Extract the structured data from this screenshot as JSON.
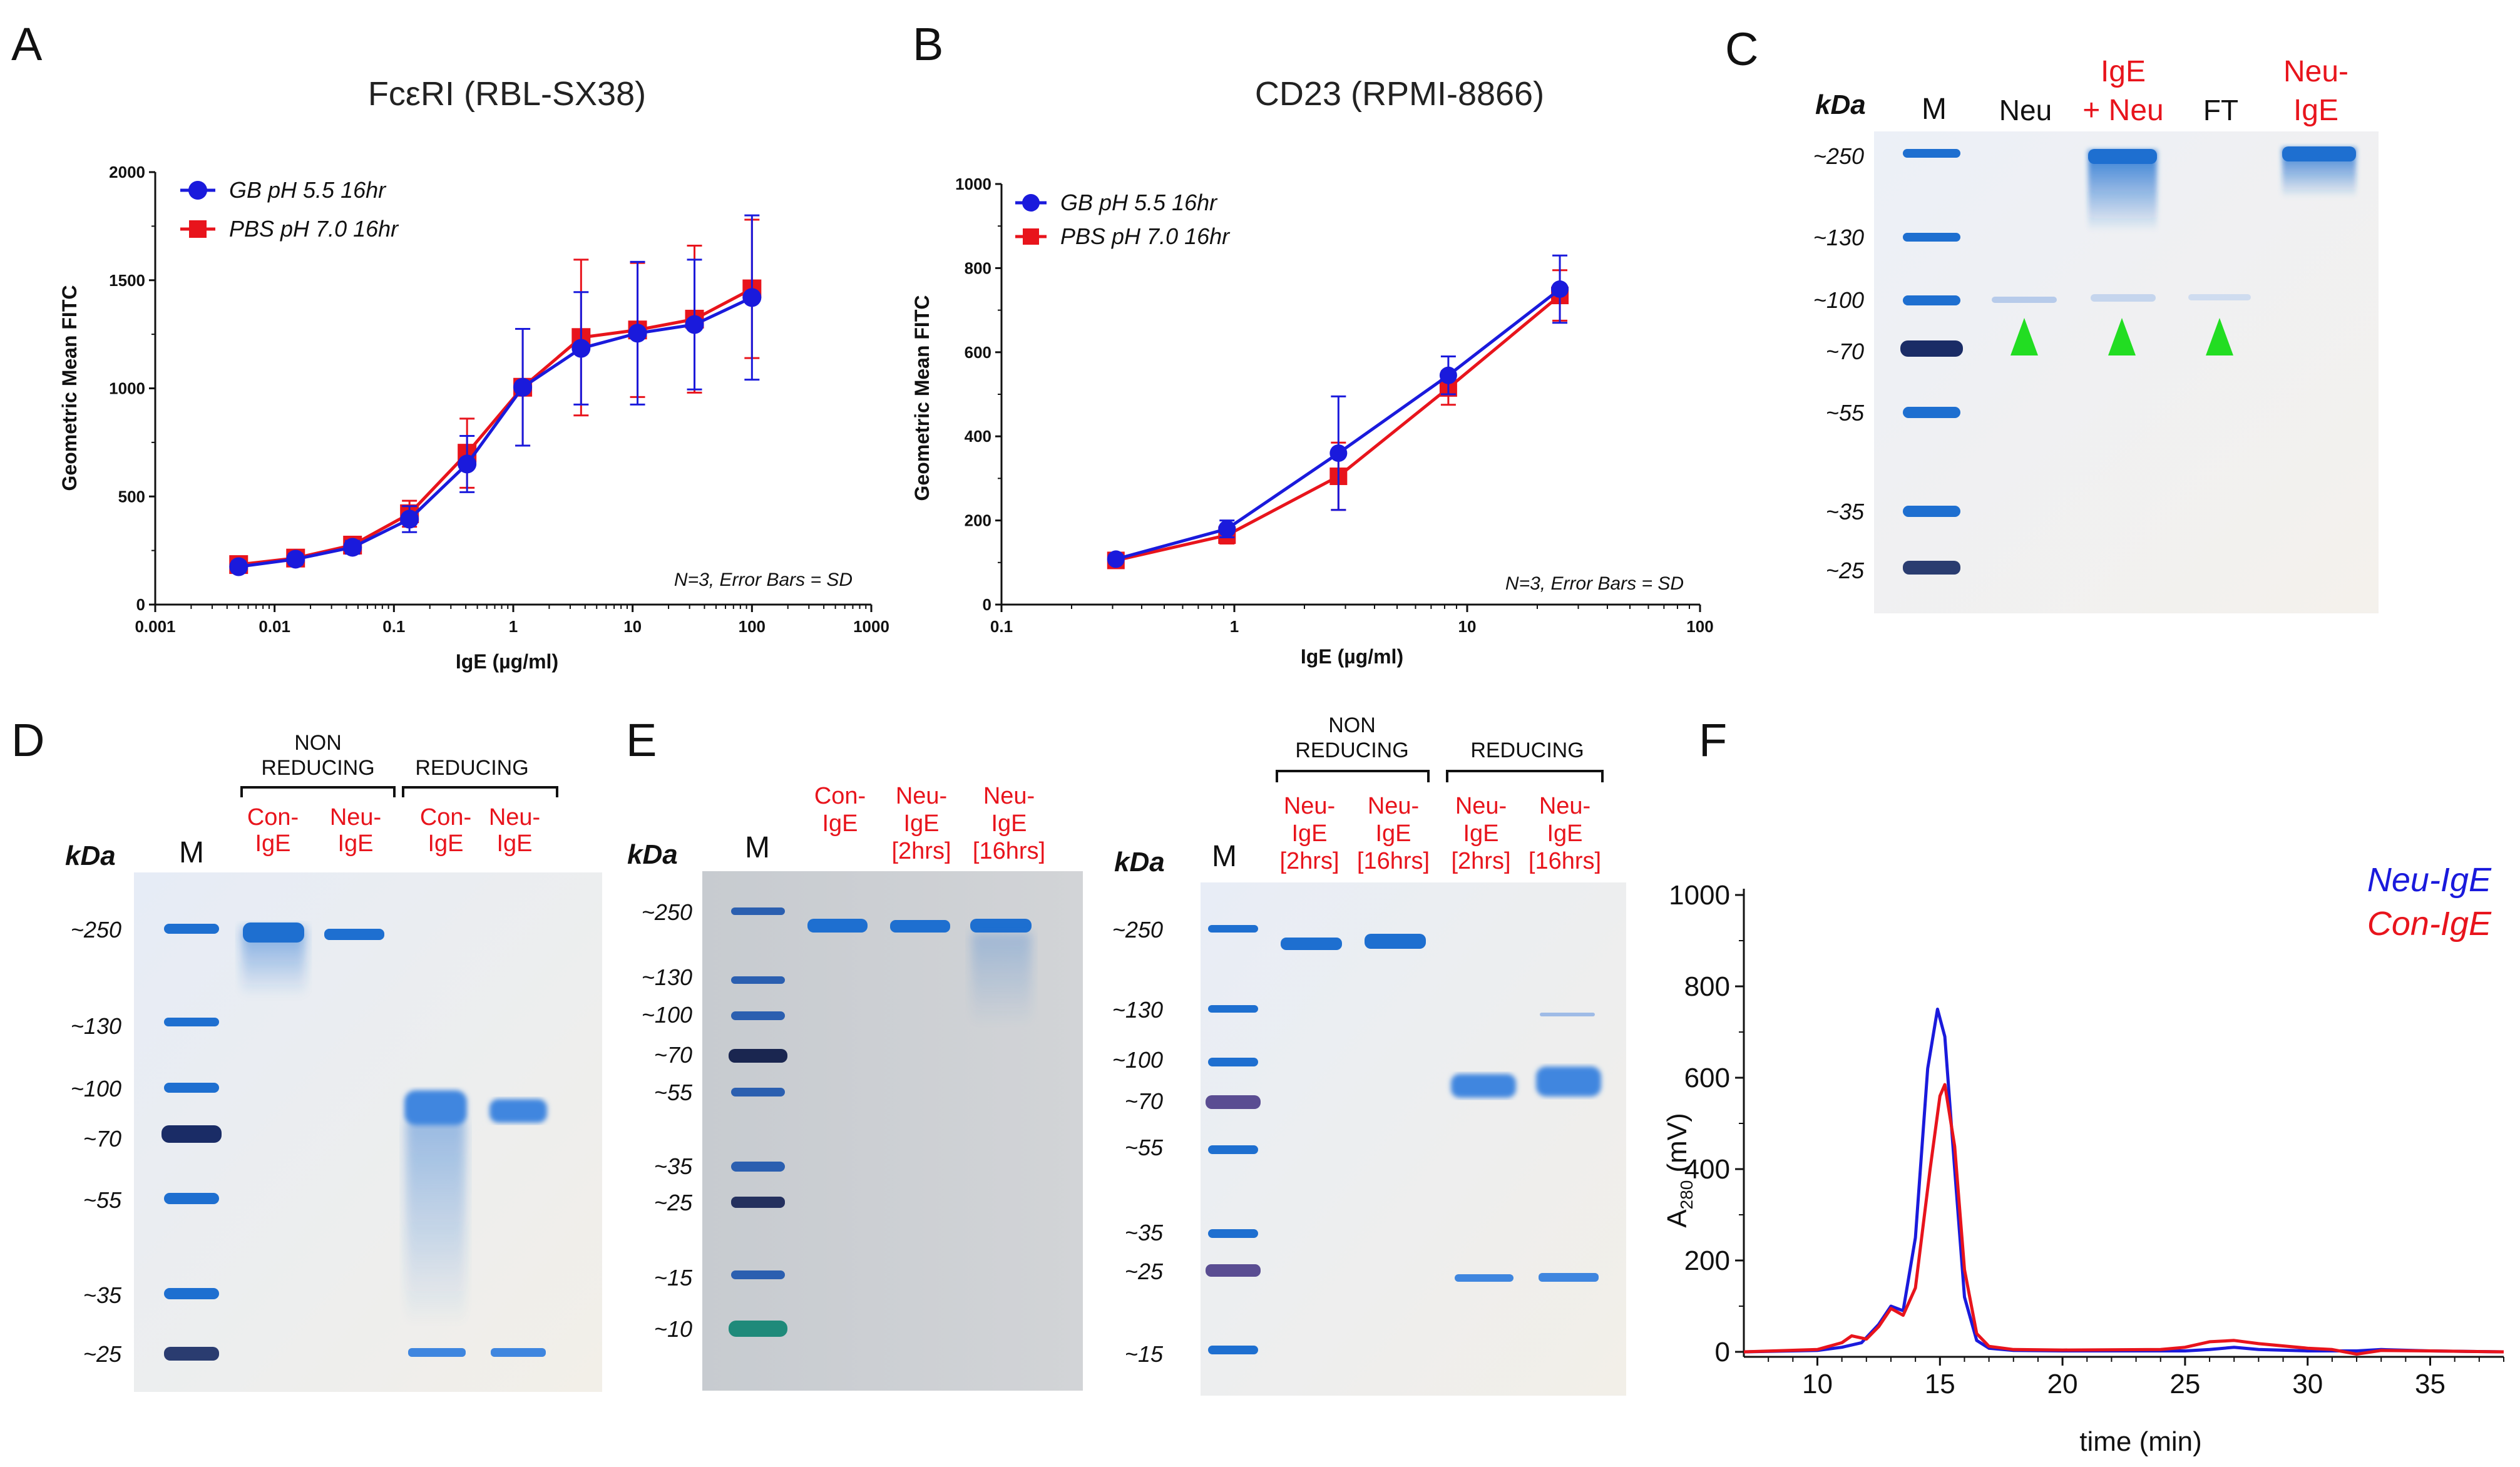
{
  "panels": {
    "A": {
      "letter": "A",
      "title": "FcεRI (RBL-SX38)",
      "xlabel": "IgE (µg/ml)",
      "ylabel": "Geometric Mean FITC",
      "note": "N=3, Error Bars = SD",
      "xticks": [
        "0.001",
        "0.01",
        "0.1",
        "1",
        "10",
        "100",
        "1000"
      ],
      "yticks": [
        "0",
        "500",
        "1000",
        "1500",
        "2000"
      ]
    },
    "B": {
      "letter": "B",
      "title": "CD23 (RPMI-8866)",
      "xlabel": "IgE (µg/ml)",
      "ylabel": "Geometric Mean FITC",
      "note": "N=3, Error Bars = SD",
      "xticks": [
        "0.1",
        "1",
        "10",
        "100"
      ],
      "yticks": [
        "0",
        "200",
        "400",
        "600",
        "800",
        "1000"
      ]
    },
    "C": {
      "letter": "C",
      "kda": "kDa",
      "marker": "M",
      "lanes": {
        "neu": "Neu",
        "ige_neu_1": "IgE",
        "ige_neu_2": "+ Neu",
        "ft": "FT",
        "neu_ige_1": "Neu-",
        "neu_ige_2": "IgE"
      },
      "mw": [
        "~250",
        "~130",
        "~100",
        "~70",
        "~55",
        "~35",
        "~25"
      ]
    },
    "D": {
      "letter": "D",
      "kda": "kDa",
      "marker": "M",
      "cond_non_1": "NON",
      "cond_non_2": "REDUCING",
      "cond_red": "REDUCING",
      "lanes": [
        [
          "Con-",
          "IgE"
        ],
        [
          "Neu-",
          "IgE"
        ],
        [
          "Con-",
          "IgE"
        ],
        [
          "Neu-",
          "IgE"
        ]
      ],
      "mw": [
        "~250",
        "~130",
        "~100",
        "~70",
        "~55",
        "~35",
        "~25"
      ]
    },
    "E": {
      "letter": "E",
      "kda": "kDa",
      "marker": "M",
      "left_lanes": [
        [
          "Con-",
          "IgE",
          ""
        ],
        [
          "Neu-",
          "IgE",
          "[2hrs]"
        ],
        [
          "Neu-",
          "IgE",
          "[16hrs]"
        ]
      ],
      "left_mw": [
        "~250",
        "~130",
        "~100",
        "~70",
        "~55",
        "~35",
        "~25",
        "~15",
        "~10"
      ],
      "cond_non_1": "NON",
      "cond_non_2": "REDUCING",
      "cond_red": "REDUCING",
      "right_lanes": [
        [
          "Neu-",
          "IgE",
          "[2hrs]"
        ],
        [
          "Neu-",
          "IgE",
          "[16hrs]"
        ],
        [
          "Neu-",
          "IgE",
          "[2hrs]"
        ],
        [
          "Neu-",
          "IgE",
          "[16hrs]"
        ]
      ],
      "right_mw": [
        "~250",
        "~130",
        "~100",
        "~70",
        "~55",
        "~35",
        "~25",
        "~15"
      ]
    },
    "F": {
      "letter": "F",
      "xlabel": "time (min)",
      "ylabel_main": "A",
      "ylabel_sub": "280",
      "ylabel_unit": " (mV)",
      "legend": [
        {
          "name": "Neu-IgE",
          "color": "#1a1adc"
        },
        {
          "name": "Con-IgE",
          "color": "#e8141c"
        }
      ],
      "xticks": [
        "10",
        "15",
        "20",
        "25",
        "30",
        "35"
      ],
      "yticks": [
        "0",
        "200",
        "400",
        "600",
        "800",
        "1000"
      ]
    }
  },
  "colors": {
    "gb": "#1a1adc",
    "pbs": "#e8141c",
    "arrow": "#22dd22",
    "gel_stain": "#1e6fd0"
  },
  "chart_data": [
    {
      "type": "line",
      "panel": "A",
      "title": "FcεRI (RBL-SX38)",
      "xlabel": "IgE (µg/ml)",
      "ylabel": "Geometric Mean FITC",
      "xscale": "log",
      "xlim": [
        0.001,
        1000
      ],
      "ylim": [
        0,
        2000
      ],
      "legend_position": "top-left",
      "x": [
        0.005,
        0.015,
        0.045,
        0.135,
        0.41,
        1.2,
        3.7,
        11,
        33,
        100
      ],
      "series": [
        {
          "name": "GB pH 5.5 16hr",
          "marker": "circle",
          "values": [
            175,
            210,
            265,
            395,
            650,
            1005,
            1185,
            1255,
            1295,
            1420
          ],
          "errors": [
            25,
            25,
            30,
            60,
            130,
            270,
            260,
            330,
            300,
            380
          ]
        },
        {
          "name": "PBS pH 7.0 16hr",
          "marker": "square",
          "values": [
            185,
            215,
            275,
            420,
            700,
            1005,
            1235,
            1270,
            1320,
            1460
          ],
          "errors": [
            25,
            25,
            30,
            60,
            160,
            270,
            360,
            310,
            340,
            320
          ]
        }
      ]
    },
    {
      "type": "line",
      "panel": "B",
      "title": "CD23 (RPMI-8866)",
      "xlabel": "IgE (µg/ml)",
      "ylabel": "Geometric Mean FITC",
      "xscale": "log",
      "xlim": [
        0.1,
        100
      ],
      "ylim": [
        0,
        1000
      ],
      "legend_position": "top-left",
      "x": [
        0.31,
        0.93,
        2.8,
        8.3,
        25
      ],
      "series": [
        {
          "name": "GB pH 5.5 16hr",
          "marker": "circle",
          "values": [
            108,
            180,
            360,
            545,
            750
          ],
          "errors": [
            10,
            20,
            135,
            45,
            80
          ]
        },
        {
          "name": "PBS pH 7.0 16hr",
          "marker": "square",
          "values": [
            105,
            165,
            305,
            515,
            735
          ],
          "errors": [
            10,
            20,
            80,
            40,
            60
          ]
        }
      ]
    },
    {
      "type": "line",
      "panel": "F",
      "xlabel": "time (min)",
      "ylabel": "A280 (mV)",
      "xlim": [
        7,
        38
      ],
      "ylim": [
        0,
        1000
      ],
      "legend_position": "top-right",
      "series": [
        {
          "name": "Neu-IgE",
          "x": [
            7,
            10,
            11,
            11.8,
            12.5,
            13,
            13.5,
            14,
            14.5,
            14.9,
            15.2,
            15.6,
            16,
            16.5,
            17,
            18,
            20,
            25,
            26,
            27,
            28,
            30,
            32,
            33,
            35,
            38
          ],
          "y": [
            0,
            3,
            10,
            20,
            60,
            100,
            90,
            250,
            620,
            750,
            690,
            400,
            120,
            25,
            8,
            3,
            2,
            2,
            5,
            10,
            5,
            2,
            2,
            5,
            2,
            0
          ]
        },
        {
          "name": "Con-IgE",
          "x": [
            7,
            10,
            11,
            11.4,
            12,
            12.5,
            13,
            13.5,
            14,
            14.6,
            15,
            15.2,
            15.6,
            16,
            16.5,
            17,
            18,
            20,
            24,
            25,
            26,
            27,
            28,
            30,
            31,
            32,
            33,
            35,
            38
          ],
          "y": [
            0,
            5,
            20,
            35,
            28,
            55,
            95,
            80,
            140,
            400,
            560,
            585,
            450,
            180,
            40,
            12,
            5,
            4,
            5,
            10,
            22,
            25,
            18,
            8,
            5,
            -5,
            3,
            2,
            0
          ]
        }
      ]
    }
  ]
}
